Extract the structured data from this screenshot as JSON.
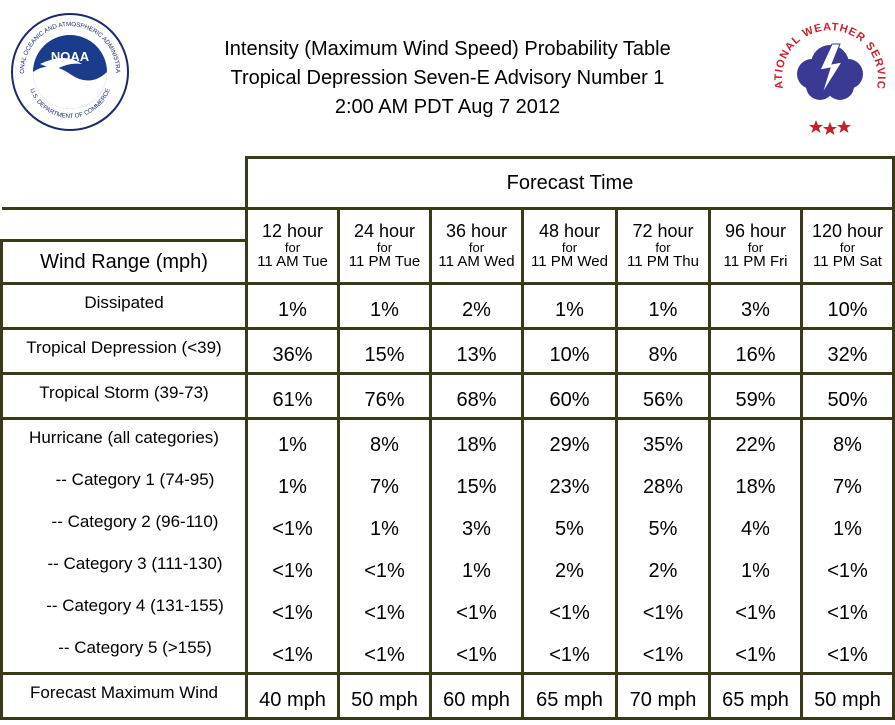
{
  "header": {
    "title_line1": "Intensity (Maximum Wind Speed) Probability Table",
    "title_line2": "Tropical Depression Seven-E Advisory Number 1",
    "title_line3": "2:00 AM PDT Aug 7 2012"
  },
  "logos": {
    "noaa_ring_text_top": "NATIONAL OCEANIC AND ATMOSPHERIC ADMINISTRATION",
    "noaa_ring_text_bottom": "U.S. DEPARTMENT OF COMMERCE",
    "noaa_center_text": "NOAA",
    "nws_ring_text": "NATIONAL WEATHER SERVICE"
  },
  "table": {
    "forecast_time_label": "Forecast Time",
    "wind_range_label": "Wind Range (mph)",
    "columns": [
      {
        "hour": "12 hour",
        "for": "for",
        "when": "11 AM Tue"
      },
      {
        "hour": "24 hour",
        "for": "for",
        "when": "11 PM Tue"
      },
      {
        "hour": "36 hour",
        "for": "for",
        "when": "11 AM Wed"
      },
      {
        "hour": "48 hour",
        "for": "for",
        "when": "11 PM Wed"
      },
      {
        "hour": "72 hour",
        "for": "for",
        "when": "11 PM Thu"
      },
      {
        "hour": "96 hour",
        "for": "for",
        "when": "11 PM Fri"
      },
      {
        "hour": "120 hour",
        "for": "for",
        "when": "11 PM Sat"
      }
    ],
    "dissipated": {
      "label": "Dissipated",
      "values": [
        "1%",
        "1%",
        "2%",
        "1%",
        "1%",
        "3%",
        "10%"
      ]
    },
    "depression": {
      "label": "Tropical Depression (<39)",
      "values": [
        "36%",
        "15%",
        "13%",
        "10%",
        "8%",
        "16%",
        "32%"
      ]
    },
    "storm": {
      "label": "Tropical Storm (39-73)",
      "values": [
        "61%",
        "76%",
        "68%",
        "60%",
        "56%",
        "59%",
        "50%"
      ]
    },
    "hurricane": {
      "label": "Hurricane (all categories)",
      "values": [
        "1%",
        "8%",
        "18%",
        "29%",
        "35%",
        "22%",
        "8%"
      ],
      "categories": [
        {
          "label": "-- Category 1 (74-95)",
          "values": [
            "1%",
            "7%",
            "15%",
            "23%",
            "28%",
            "18%",
            "7%"
          ]
        },
        {
          "label": "-- Category 2 (96-110)",
          "values": [
            "<1%",
            "1%",
            "3%",
            "5%",
            "5%",
            "4%",
            "1%"
          ]
        },
        {
          "label": "-- Category 3 (111-130)",
          "values": [
            "<1%",
            "<1%",
            "1%",
            "2%",
            "2%",
            "1%",
            "<1%"
          ]
        },
        {
          "label": "-- Category 4 (131-155)",
          "values": [
            "<1%",
            "<1%",
            "<1%",
            "<1%",
            "<1%",
            "<1%",
            "<1%"
          ]
        },
        {
          "label": "-- Category 5 (>155)",
          "values": [
            "<1%",
            "<1%",
            "<1%",
            "<1%",
            "<1%",
            "<1%",
            "<1%"
          ]
        }
      ]
    },
    "max_wind": {
      "label": "Forecast Maximum Wind",
      "values": [
        "40 mph",
        "50 mph",
        "60 mph",
        "65 mph",
        "70 mph",
        "65 mph",
        "50 mph"
      ]
    }
  }
}
